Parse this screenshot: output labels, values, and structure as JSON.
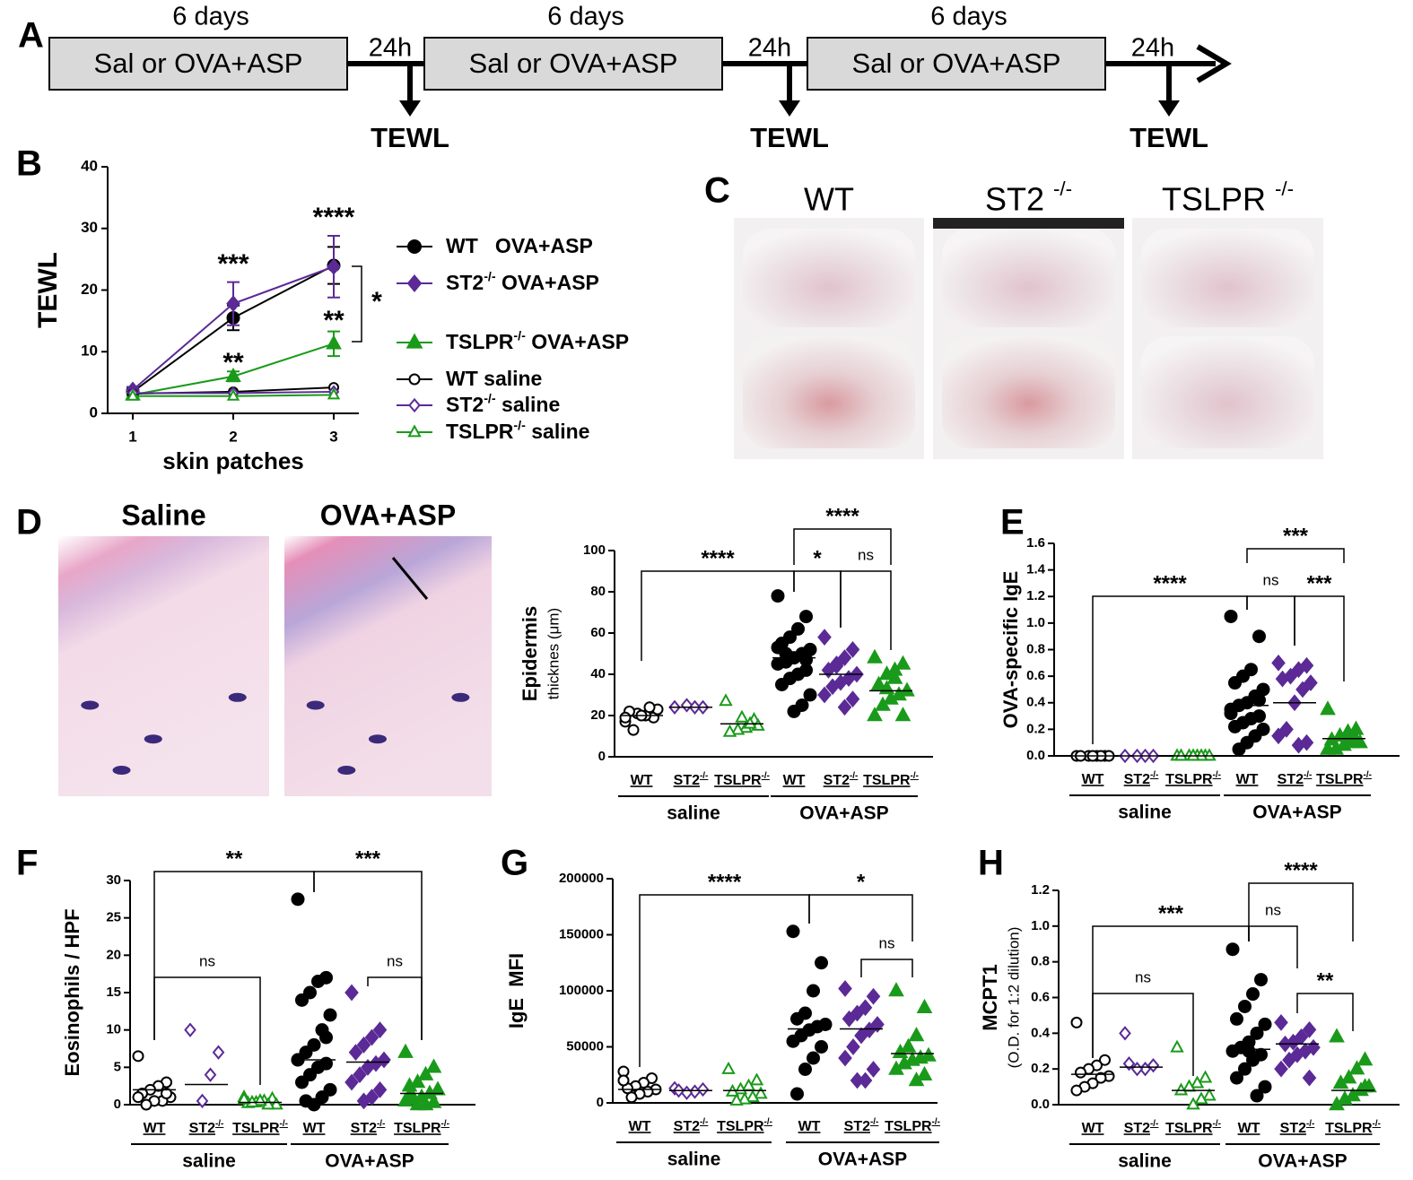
{
  "panel_labels": [
    "A",
    "B",
    "C",
    "D",
    "E",
    "F",
    "G",
    "H"
  ],
  "timeline": {
    "periods": [
      "6 days",
      "6 days",
      "6 days"
    ],
    "boxes": [
      "Sal or OVA+ASP",
      "Sal or OVA+ASP",
      "Sal or OVA+ASP"
    ],
    "intervals": [
      "24h",
      "24h",
      "24h"
    ],
    "measurements": [
      "TEWL",
      "TEWL",
      "TEWL"
    ]
  },
  "photos": {
    "titles": [
      "WT",
      "ST2 -/-",
      "TSLPR -/-"
    ]
  },
  "histology": {
    "titles": [
      "Saline",
      "OVA+ASP"
    ]
  },
  "chart_data": [
    {
      "type": "line",
      "xlabel": "skin patches",
      "ylabel": "TEWL",
      "x": [
        1,
        2,
        3
      ],
      "xlim": [
        0.75,
        3.25
      ],
      "xticks": [
        1,
        2,
        3
      ],
      "ylim": [
        0,
        40
      ],
      "yticks": [
        0,
        10,
        20,
        30,
        40
      ],
      "legend": "right",
      "annotations": [
        "***",
        "****",
        "**",
        "**",
        "*"
      ],
      "series": [
        {
          "name": "WT   OVA+ASP",
          "color": "#000000",
          "marker": "circle",
          "filled": true,
          "values": [
            3.5,
            15.5,
            24
          ],
          "errors": [
            0.5,
            2,
            3
          ]
        },
        {
          "name": "ST2-/- OVA+ASP",
          "color": "#5b2a96",
          "marker": "diamond",
          "filled": true,
          "values": [
            3.8,
            17.8,
            23.8
          ],
          "errors": [
            0.5,
            3.5,
            5
          ]
        },
        {
          "name": "TSLPR-/- OVA+ASP",
          "color": "#1a9a1a",
          "marker": "triangle",
          "filled": true,
          "values": [
            3,
            6,
            11.3
          ],
          "errors": [
            0.4,
            0.8,
            2
          ]
        },
        {
          "name": "WT saline",
          "color": "#000000",
          "marker": "circle",
          "filled": false,
          "values": [
            3.2,
            3.5,
            4.2
          ]
        },
        {
          "name": "ST2-/- saline",
          "color": "#5b2a96",
          "marker": "diamond",
          "filled": false,
          "values": [
            3.3,
            3.3,
            3.5
          ]
        },
        {
          "name": "TSLPR-/- saline",
          "color": "#1a9a1a",
          "marker": "triangle",
          "filled": false,
          "values": [
            2.8,
            2.8,
            3.0
          ]
        }
      ]
    },
    {
      "type": "dot",
      "ylabel": [
        "Epidermis",
        "thicknes (μm)"
      ],
      "ylim": [
        0,
        100
      ],
      "yticks": [
        0,
        20,
        40,
        60,
        80,
        100
      ],
      "categories": [
        "WT",
        "ST2-/-",
        "TSLPR-/-",
        "WT",
        "ST2-/-",
        "TSLPR-/-"
      ],
      "groups": [
        "saline",
        "OVA+ASP"
      ],
      "colors": [
        "#000000",
        "#5b2a96",
        "#1a9a1a",
        "#000000",
        "#5b2a96",
        "#1a9a1a"
      ],
      "markers": [
        "circle",
        "diamond",
        "triangle",
        "circle",
        "diamond",
        "triangle"
      ],
      "filled": [
        false,
        false,
        false,
        true,
        true,
        true
      ],
      "points": [
        [
          17,
          19,
          20,
          21,
          22,
          23,
          24,
          20,
          13,
          19
        ],
        [
          24,
          24,
          24,
          25
        ],
        [
          27,
          18,
          14,
          13,
          12,
          15,
          16,
          19
        ],
        [
          78,
          68,
          62,
          58,
          55,
          52,
          50,
          48,
          46,
          45,
          42,
          40,
          38,
          35,
          30,
          25,
          22,
          50,
          53,
          47
        ],
        [
          58,
          52,
          48,
          45,
          42,
          40,
          38,
          36,
          34,
          30,
          28,
          24,
          44
        ],
        [
          48,
          45,
          42,
          40,
          35,
          32,
          30,
          28,
          25,
          20,
          20,
          38,
          33
        ]
      ],
      "medians": [
        20,
        24,
        16,
        48,
        40,
        32
      ],
      "brackets": [
        {
          "from": 0,
          "to": 3,
          "label": "****"
        },
        {
          "from": 3,
          "to": 5,
          "label": "****"
        },
        {
          "from": 3,
          "to": 4,
          "label": "*"
        },
        {
          "from": 4,
          "to": 5,
          "label": "ns"
        }
      ]
    },
    {
      "type": "dot",
      "ylabel": [
        "OVA-specific IgE"
      ],
      "ylim": [
        0,
        1.6
      ],
      "yticks": [
        {
          "value": 0,
          "label": "0.0"
        },
        0.2,
        0.4,
        0.6,
        0.8,
        {
          "value": 1,
          "label": "1.0"
        },
        1.2,
        1.4,
        1.6
      ],
      "categories": [
        "WT",
        "ST2-/-",
        "TSLPR-/-",
        "WT",
        "ST2-/-",
        "TSLPR-/-"
      ],
      "groups": [
        "saline",
        "OVA+ASP"
      ],
      "colors": [
        "#000000",
        "#5b2a96",
        "#1a9a1a",
        "#000000",
        "#5b2a96",
        "#1a9a1a"
      ],
      "markers": [
        "circle",
        "diamond",
        "triangle",
        "circle",
        "diamond",
        "triangle"
      ],
      "filled": [
        false,
        false,
        false,
        true,
        true,
        true
      ],
      "points": [
        [
          0,
          0,
          0,
          0,
          0,
          0,
          0,
          0
        ],
        [
          0,
          0,
          0,
          0
        ],
        [
          0,
          0,
          0,
          0,
          0,
          0,
          0,
          0
        ],
        [
          1.05,
          0.9,
          0.65,
          0.6,
          0.55,
          0.5,
          0.45,
          0.4,
          0.38,
          0.35,
          0.3,
          0.28,
          0.25,
          0.22,
          0.2,
          0.15,
          0.1,
          0.05,
          0.32,
          0.42
        ],
        [
          0.7,
          0.68,
          0.65,
          0.6,
          0.58,
          0.55,
          0.5,
          0.4,
          0.2,
          0.15,
          0.1,
          0.08
        ],
        [
          0.35,
          0.2,
          0.18,
          0.15,
          0.12,
          0.1,
          0.1,
          0.08,
          0.05,
          0.05,
          0.12,
          0.14
        ]
      ],
      "medians": [
        0,
        0,
        0,
        0.38,
        0.4,
        0.13
      ],
      "brackets": [
        {
          "from": 0,
          "to": 3,
          "label": "****"
        },
        {
          "from": 3,
          "to": 5,
          "label": "***"
        },
        {
          "from": 3,
          "to": 4,
          "label": "ns"
        },
        {
          "from": 4,
          "to": 5,
          "label": "***"
        }
      ]
    },
    {
      "type": "dot",
      "ylabel": [
        "Eosinophils / HPF"
      ],
      "ylim": [
        0,
        30
      ],
      "yticks": [
        0,
        5,
        10,
        15,
        20,
        25,
        30
      ],
      "categories": [
        "WT",
        "ST2-/-",
        "TSLPR-/-",
        "WT",
        "ST2-/-",
        "TSLPR-/-"
      ],
      "groups": [
        "saline",
        "OVA+ASP"
      ],
      "colors": [
        "#000000",
        "#5b2a96",
        "#1a9a1a",
        "#000000",
        "#5b2a96",
        "#1a9a1a"
      ],
      "markers": [
        "circle",
        "diamond",
        "triangle",
        "circle",
        "diamond",
        "triangle"
      ],
      "filled": [
        false,
        false,
        false,
        true,
        true,
        true
      ],
      "points": [
        [
          6.5,
          3,
          2.5,
          2,
          1.5,
          1,
          0.5,
          0.5,
          0,
          1,
          1.5
        ],
        [
          10,
          7,
          4,
          0.5
        ],
        [
          1,
          0.8,
          0.5,
          0.3,
          0.2,
          0,
          0,
          0.5,
          0.3,
          0.7
        ],
        [
          27.5,
          17,
          16.5,
          15,
          14,
          12,
          10,
          8,
          7,
          6,
          5.5,
          5,
          4,
          3,
          2,
          1,
          0,
          0.5,
          6,
          9
        ],
        [
          15,
          10,
          9,
          8,
          7,
          6,
          5.5,
          5,
          4,
          3,
          2,
          1,
          0.5
        ],
        [
          7,
          5,
          4,
          3,
          2.5,
          2,
          1.5,
          1,
          0.8,
          0.5,
          0.3,
          0,
          0,
          1.2
        ]
      ],
      "medians": [
        2,
        2.7,
        0.3,
        6,
        5.7,
        1.5
      ],
      "brackets": [
        {
          "from": 0,
          "to": 3,
          "label": "**"
        },
        {
          "from": 3,
          "to": 5,
          "label": "***"
        },
        {
          "from": 0,
          "to": 2,
          "label": "ns"
        },
        {
          "from": 4,
          "to": 5,
          "label": "ns"
        }
      ]
    },
    {
      "type": "dot",
      "ylabel": [
        "IgE  MFI"
      ],
      "ylim": [
        0,
        200000
      ],
      "yticks": [
        0,
        50000,
        100000,
        150000,
        200000
      ],
      "categories": [
        "WT",
        "ST2-/-",
        "TSLPR-/-",
        "WT",
        "ST2-/-",
        "TSLPR-/-"
      ],
      "groups": [
        "saline",
        "OVA+ASP"
      ],
      "colors": [
        "#000000",
        "#5b2a96",
        "#1a9a1a",
        "#000000",
        "#5b2a96",
        "#1a9a1a"
      ],
      "markers": [
        "circle",
        "diamond",
        "triangle",
        "circle",
        "diamond",
        "triangle"
      ],
      "filled": [
        false,
        false,
        false,
        true,
        true,
        true
      ],
      "points": [
        [
          28000,
          22000,
          18000,
          15000,
          13000,
          12000,
          10000,
          8000,
          5000,
          20000
        ],
        [
          13000,
          12000,
          10000,
          9000,
          11000
        ],
        [
          30000,
          20000,
          15000,
          12000,
          10000,
          8000,
          5000,
          3000,
          2000
        ],
        [
          153000,
          125000,
          100000,
          80000,
          75000,
          70000,
          68000,
          65000,
          60000,
          55000,
          50000,
          40000,
          30000,
          8000
        ],
        [
          102000,
          95000,
          85000,
          80000,
          75000,
          70000,
          65000,
          60000,
          50000,
          40000,
          30000,
          20000,
          20000
        ],
        [
          100000,
          85000,
          60000,
          50000,
          45000,
          42000,
          40000,
          38000,
          35000,
          30000,
          25000,
          20000
        ]
      ],
      "medians": [
        12000,
        11000,
        11000,
        66000,
        66000,
        44000
      ],
      "brackets": [
        {
          "from": 0,
          "to": 3,
          "label": "****"
        },
        {
          "from": 3,
          "to": 5,
          "label": "*"
        },
        {
          "from": 4,
          "to": 5,
          "label": "ns"
        }
      ]
    },
    {
      "type": "dot",
      "ylabel": [
        "MCPT1",
        "(O.D. for 1:2 dilution)"
      ],
      "ylim": [
        0,
        1.2
      ],
      "yticks": [
        {
          "value": 0,
          "label": "0.0"
        },
        0.2,
        0.4,
        0.6,
        0.8,
        {
          "value": 1,
          "label": "1.0"
        },
        1.2
      ],
      "categories": [
        "WT",
        "ST2-/-",
        "TSLPR-/-",
        "WT",
        "ST2-/-",
        "TSLPR-/-"
      ],
      "groups": [
        "saline",
        "OVA+ASP"
      ],
      "colors": [
        "#000000",
        "#5b2a96",
        "#1a9a1a",
        "#000000",
        "#5b2a96",
        "#1a9a1a"
      ],
      "markers": [
        "circle",
        "diamond",
        "triangle",
        "circle",
        "diamond",
        "triangle"
      ],
      "filled": [
        false,
        false,
        false,
        true,
        true,
        true
      ],
      "points": [
        [
          0.46,
          0.25,
          0.22,
          0.2,
          0.18,
          0.16,
          0.15,
          0.12,
          0.1,
          0.08
        ],
        [
          0.4,
          0.22,
          0.2,
          0.2,
          0.23
        ],
        [
          0.32,
          0.15,
          0.12,
          0.1,
          0.08,
          0.05,
          0.03,
          0.0
        ],
        [
          0.87,
          0.7,
          0.62,
          0.55,
          0.48,
          0.45,
          0.4,
          0.35,
          0.32,
          0.3,
          0.28,
          0.25,
          0.2,
          0.15,
          0.1,
          0.05,
          0.3
        ],
        [
          0.46,
          0.42,
          0.38,
          0.35,
          0.34,
          0.32,
          0.3,
          0.28,
          0.25,
          0.2,
          0.15
        ],
        [
          0.38,
          0.25,
          0.2,
          0.15,
          0.12,
          0.1,
          0.08,
          0.05,
          0.03,
          0.0,
          0.1
        ]
      ],
      "medians": [
        0.17,
        0.21,
        0.08,
        0.31,
        0.34,
        0.08
      ],
      "brackets": [
        {
          "from": 0,
          "to": 3,
          "label": "***"
        },
        {
          "from": 3,
          "to": 5,
          "label": "****"
        },
        {
          "from": 3,
          "to": 4,
          "label": "ns"
        },
        {
          "from": 4,
          "to": 5,
          "label": "**"
        },
        {
          "from": 0,
          "to": 2,
          "label": "ns"
        }
      ]
    }
  ]
}
